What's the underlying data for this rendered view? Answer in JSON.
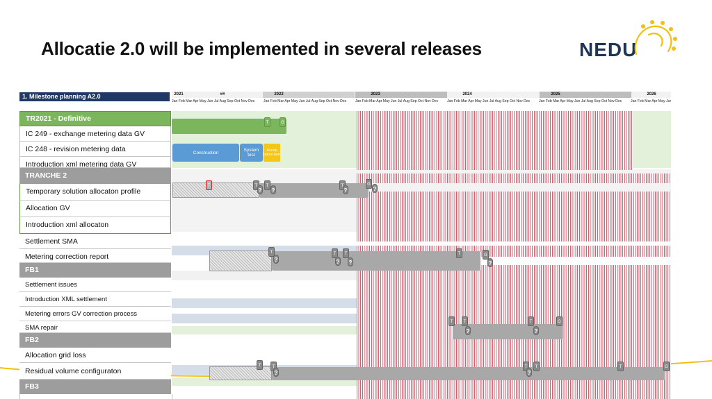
{
  "title": "Allocatie 2.0 will be implemented in several releases",
  "logo": {
    "text": "NEDU",
    "brand_color": "#1d3557",
    "accent_color": "#f2c00f"
  },
  "panel_header": "1. Milestone planning A2.0",
  "timeline": {
    "years": [
      "2021",
      "##",
      "2022",
      "2023",
      "2024",
      "2025",
      "2026"
    ],
    "months_row": "Jan Feb Mar Apr May Jun Jul Aug Sep Oct Nov Dec"
  },
  "sections": {
    "tr2021": "TR2021 - Definitive",
    "tranche2": "TRANCHE 2",
    "fb1": "FB1",
    "fb2": "FB2",
    "fb3": "FB3"
  },
  "rows": {
    "ic249": "IC 249 - exchange metering data GV",
    "ic248": "IC 248 - revision metering data",
    "xml_gv": "Introduction xml metering data GV",
    "temp_solution": "Temporary solution allocaton profile",
    "allocation_gv": "Allocation GV",
    "xml_allocation": "Introduction xml allocaton",
    "settlement_sma": "Settlement SMA",
    "metering_correction": "Metering correction report",
    "settlement_issues": "Settlement issues",
    "xml_settlement": "Introduction XML settlement",
    "metering_errors": "Metering errors GV correction process",
    "sma_repair": "SMA repair",
    "allocation_grid_loss": "Allocation grid loss",
    "residual_volume": "Residual volume configuraton"
  },
  "boxes": {
    "construction": "Construction",
    "system_test": "System test",
    "acceptance": "Accep tance test"
  },
  "milestones": {
    "t": "T",
    "g": "G",
    "q": "?"
  },
  "colors": {
    "green": "#7cb65c",
    "navy": "#1f3864",
    "grey_section": "#9d9d9d",
    "hatch_red": "#d45f6f",
    "blue": "#5b9bd5",
    "yellow": "#f5c518"
  }
}
